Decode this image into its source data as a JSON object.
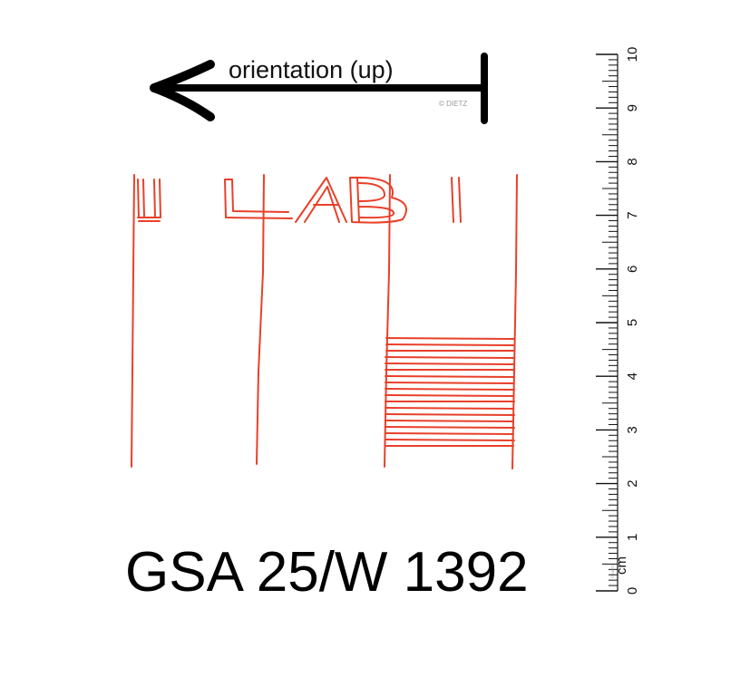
{
  "orientation": {
    "label": "orientation (up)",
    "copyright": "© DIETZ",
    "arrow_icon": "arrow-left-icon",
    "color": "#000000"
  },
  "drawing": {
    "stroke_color": "#e8402a",
    "partial_letters": "L ABI"
  },
  "catalog_number": "GSA 25/W 1392",
  "scale_bar": {
    "unit": "cm",
    "unit_note": "© DIETZ",
    "min": 0,
    "max": 10,
    "labels": [
      "0",
      "1",
      "2",
      "3",
      "4",
      "5",
      "6",
      "7",
      "8",
      "9",
      "10"
    ],
    "color": "#111111"
  }
}
